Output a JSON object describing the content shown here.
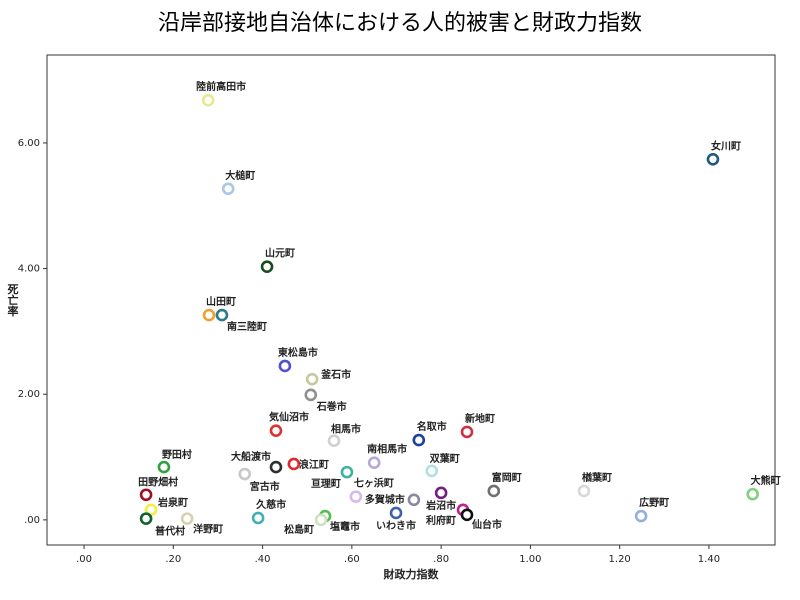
{
  "chart_data": {
    "type": "scatter",
    "title": "沿岸部接地自治体における人的被害と財政力指数",
    "x_label": "財政力指数",
    "y_label": "死亡率",
    "xlim": [
      -0.083,
      1.548
    ],
    "ylim": [
      -0.4,
      7.4
    ],
    "xticks": [
      {
        "value": 0,
        "label": ".00"
      },
      {
        "value": 0.2,
        "label": ".20"
      },
      {
        "value": 0.4,
        "label": ".40"
      },
      {
        "value": 0.6,
        "label": ".60"
      },
      {
        "value": 0.8,
        "label": ".80"
      },
      {
        "value": 1.0,
        "label": "1.00"
      },
      {
        "value": 1.2,
        "label": "1.20"
      },
      {
        "value": 1.4,
        "label": "1.40"
      }
    ],
    "yticks": [
      {
        "value": 0,
        "label": ".00"
      },
      {
        "value": 2,
        "label": "2.00"
      },
      {
        "value": 4,
        "label": "4.00"
      },
      {
        "value": 6,
        "label": "6.00"
      }
    ],
    "points": [
      {
        "name": "陸前高田市",
        "x": 0.278,
        "y": 6.68,
        "color": "#e8e890"
      },
      {
        "name": "女川町",
        "x": 1.409,
        "y": 5.74,
        "color": "#1f5a80"
      },
      {
        "name": "大槌町",
        "x": 0.323,
        "y": 5.27,
        "color": "#a8c8e8"
      },
      {
        "name": "山元町",
        "x": 0.41,
        "y": 4.03,
        "color": "#1a4a20"
      },
      {
        "name": "山田町",
        "x": 0.28,
        "y": 3.26,
        "color": "#f0a030"
      },
      {
        "name": "南三陸町",
        "x": 0.309,
        "y": 3.26,
        "color": "#2a7a8a"
      },
      {
        "name": "東松島市",
        "x": 0.45,
        "y": 2.45,
        "color": "#5050d0"
      },
      {
        "name": "釜石市",
        "x": 0.511,
        "y": 2.24,
        "color": "#c8c8a0"
      },
      {
        "name": "石巻市",
        "x": 0.508,
        "y": 1.99,
        "color": "#909090"
      },
      {
        "name": "気仙沼市",
        "x": 0.43,
        "y": 1.42,
        "color": "#e03030"
      },
      {
        "name": "相馬市",
        "x": 0.56,
        "y": 1.26,
        "color": "#d0d0d0"
      },
      {
        "name": "名取市",
        "x": 0.75,
        "y": 1.27,
        "color": "#2040a0"
      },
      {
        "name": "新地町",
        "x": 0.858,
        "y": 1.4,
        "color": "#d03040"
      },
      {
        "name": "南相馬市",
        "x": 0.65,
        "y": 0.91,
        "color": "#b8a8d8"
      },
      {
        "name": "双葉町",
        "x": 0.779,
        "y": 0.78,
        "color": "#b0e0e0"
      },
      {
        "name": "野田村",
        "x": 0.179,
        "y": 0.84,
        "color": "#30a040"
      },
      {
        "name": "大船渡市",
        "x": 0.43,
        "y": 0.84,
        "color": "#303030"
      },
      {
        "name": "浪江町",
        "x": 0.47,
        "y": 0.89,
        "color": "#e02830"
      },
      {
        "name": "亘理町",
        "x": 0.589,
        "y": 0.76,
        "color": "#40b0a0"
      },
      {
        "name": "宮古市",
        "x": 0.36,
        "y": 0.73,
        "color": "#c8c8c8"
      },
      {
        "name": "富岡町",
        "x": 0.918,
        "y": 0.46,
        "color": "#707070"
      },
      {
        "name": "楢葉町",
        "x": 1.12,
        "y": 0.46,
        "color": "#d8d8d8"
      },
      {
        "name": "大熊町",
        "x": 1.498,
        "y": 0.41,
        "color": "#80d080"
      },
      {
        "name": "田野畑村",
        "x": 0.139,
        "y": 0.4,
        "color": "#a01020"
      },
      {
        "name": "七ヶ浜町",
        "x": 0.609,
        "y": 0.37,
        "color": "#d8b8e8"
      },
      {
        "name": "多賀城市",
        "x": 0.739,
        "y": 0.32,
        "color": "#8888a0"
      },
      {
        "name": "岩沼市",
        "x": 0.8,
        "y": 0.43,
        "color": "#702080"
      },
      {
        "name": "利府町",
        "x": 0.849,
        "y": 0.16,
        "color": "#c02090"
      },
      {
        "name": "仙台市",
        "x": 0.858,
        "y": 0.08,
        "color": "#101010"
      },
      {
        "name": "岩泉町",
        "x": 0.15,
        "y": 0.16,
        "color": "#f0f040"
      },
      {
        "name": "普代村",
        "x": 0.139,
        "y": 0.02,
        "color": "#106030"
      },
      {
        "name": "洋野町",
        "x": 0.231,
        "y": 0.02,
        "color": "#d8d0b0"
      },
      {
        "name": "久慈市",
        "x": 0.39,
        "y": 0.03,
        "color": "#40b0b0"
      },
      {
        "name": "松島町",
        "x": 0.54,
        "y": 0.06,
        "color": "#50c050"
      },
      {
        "name": "塩竈市",
        "x": 0.531,
        "y": 0.0,
        "color": "#d0e0c0"
      },
      {
        "name": "いわき市",
        "x": 0.699,
        "y": 0.11,
        "color": "#4060b0"
      },
      {
        "name": "広野町",
        "x": 1.248,
        "y": 0.06,
        "color": "#90b0e0"
      }
    ]
  }
}
